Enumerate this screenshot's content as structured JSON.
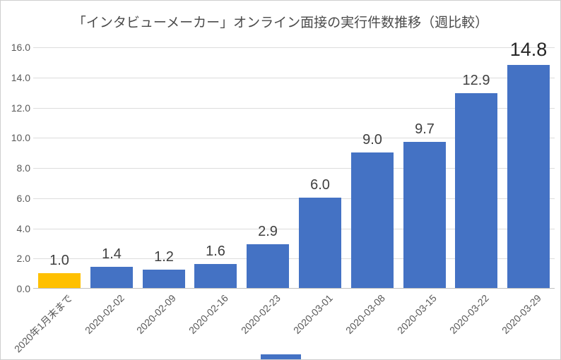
{
  "chart_data": {
    "type": "bar",
    "title": "「インタビューメーカー」オンライン面接の実行件数推移（週比較）",
    "categories": [
      "2020年1月末まで",
      "2020-02-02",
      "2020-02-09",
      "2020-02-16",
      "2020-02-23",
      "2020-03-01",
      "2020-03-08",
      "2020-03-15",
      "2020-03-22",
      "2020-03-29"
    ],
    "values": [
      1.0,
      1.4,
      1.2,
      1.6,
      2.9,
      6.0,
      9.0,
      9.7,
      12.9,
      14.8
    ],
    "data_labels": [
      "1.0",
      "1.4",
      "1.2",
      "1.6",
      "2.9",
      "6.0",
      "9.0",
      "9.7",
      "12.9",
      "14.8"
    ],
    "emphasized_label_index": 9,
    "highlight_index": 0,
    "xlabel": "",
    "ylabel": "",
    "ylim": [
      0,
      16
    ],
    "ytick_labels": [
      "16.0",
      "14.0",
      "12.0",
      "10.0",
      "8.0",
      "6.0",
      "4.0",
      "2.0",
      "0.0"
    ],
    "grid": true,
    "legend_position": "none",
    "colors": {
      "bar_default": "#4472C4",
      "bar_highlight": "#FFC000",
      "gridline": "#DCDCDC",
      "axis_line": "#C0C0C0",
      "title_text": "#4A4A4A",
      "tick_text": "#595959",
      "data_label_text": "#3F3F3F",
      "bottom_fragment": "#4472C4"
    }
  }
}
